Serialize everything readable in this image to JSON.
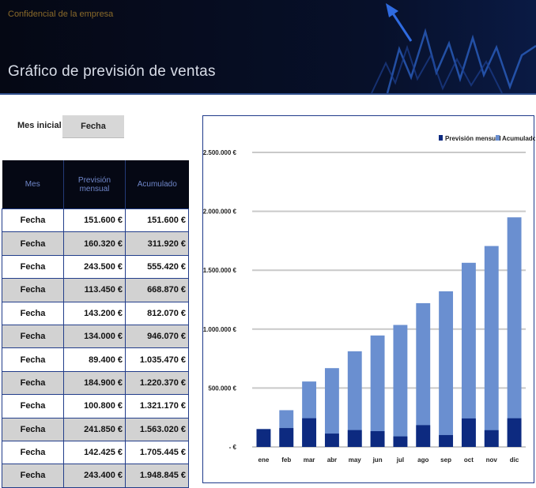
{
  "header": {
    "confidential": "Confidencial de la empresa",
    "title": "Gráfico de previsión de ventas"
  },
  "start": {
    "label": "Mes inicial",
    "value": "Fecha"
  },
  "table": {
    "headers": [
      "Mes",
      "Previsión mensual",
      "Acumulado"
    ],
    "rows": [
      [
        "Fecha",
        "151.600 €",
        "151.600 €"
      ],
      [
        "Fecha",
        "160.320 €",
        "311.920 €"
      ],
      [
        "Fecha",
        "243.500 €",
        "555.420 €"
      ],
      [
        "Fecha",
        "113.450 €",
        "668.870 €"
      ],
      [
        "Fecha",
        "143.200 €",
        "812.070 €"
      ],
      [
        "Fecha",
        "134.000 €",
        "946.070 €"
      ],
      [
        "Fecha",
        "89.400 €",
        "1.035.470 €"
      ],
      [
        "Fecha",
        "184.900 €",
        "1.220.370 €"
      ],
      [
        "Fecha",
        "100.800 €",
        "1.321.170 €"
      ],
      [
        "Fecha",
        "241.850 €",
        "1.563.020 €"
      ],
      [
        "Fecha",
        "142.425 €",
        "1.705.445 €"
      ],
      [
        "Fecha",
        "243.400 €",
        "1.948.845 €"
      ]
    ]
  },
  "chart_data": {
    "type": "bar",
    "categories": [
      "ene",
      "feb",
      "mar",
      "abr",
      "may",
      "jun",
      "jul",
      "ago",
      "sep",
      "oct",
      "nov",
      "dic"
    ],
    "series": [
      {
        "name": "Previsión mensual",
        "color": "#0d2a80",
        "values": [
          151600,
          160320,
          243500,
          113450,
          143200,
          134000,
          89400,
          184900,
          100800,
          241850,
          142425,
          243400
        ]
      },
      {
        "name": "Acumulado",
        "color": "#6a8fd0",
        "values": [
          151600,
          311920,
          555420,
          668870,
          812070,
          946070,
          1035470,
          1220370,
          1321170,
          1563020,
          1705445,
          1948845
        ]
      }
    ],
    "yticks": [
      "- €",
      "500.000 €",
      "1.000.000 €",
      "1.500.000 €",
      "2.000.000 €",
      "2.500.000 €"
    ],
    "ylim": [
      0,
      2500000
    ],
    "legend": "top-right",
    "grid": true
  }
}
